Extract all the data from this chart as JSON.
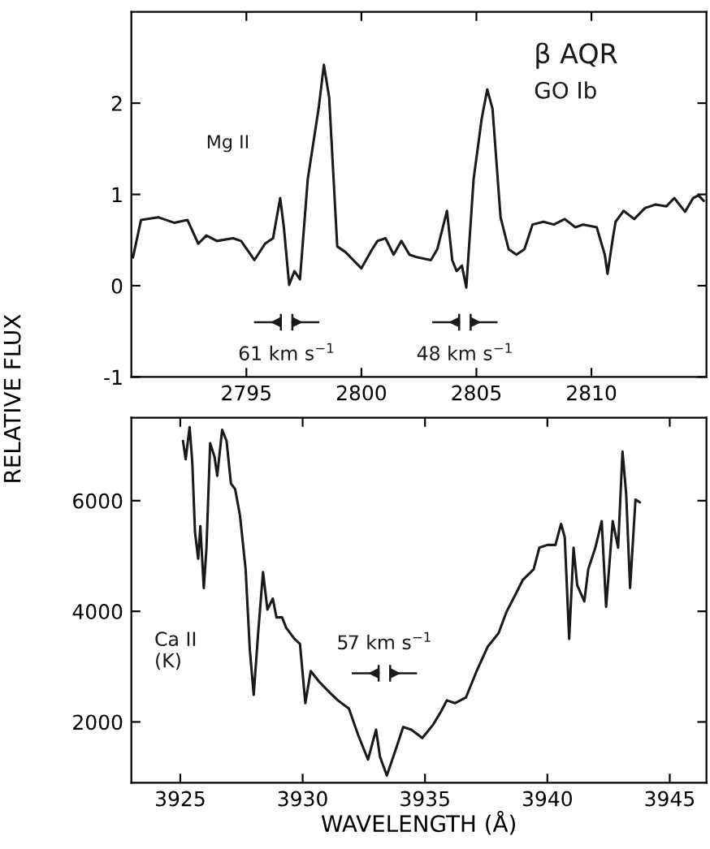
{
  "chart_data": [
    {
      "type": "line",
      "ylabel": "RELATIVE FLUX",
      "xlim": [
        2790,
        2815
      ],
      "ylim": [
        -1,
        3
      ],
      "xticks": [
        2795,
        2800,
        2805,
        2810
      ],
      "yticks": [
        -1,
        0,
        1,
        2
      ],
      "grid": false,
      "legend": false,
      "annotations": [
        "β AQR",
        "GO Ib",
        "Mg II",
        "61 km s$^{−1}$",
        "48 km s$^{−1}$"
      ],
      "series": [
        {
          "color": "#1a1a1a",
          "x": [
            2790.07,
            2790.42,
            2791.16,
            2791.86,
            2792.44,
            2792.91,
            2793.26,
            2793.72,
            2794.42,
            2794.77,
            2795.35,
            2795.81,
            2796.16,
            2796.47,
            2796.63,
            2796.86,
            2797.09,
            2797.33,
            2797.67,
            2798.14,
            2798.37,
            2798.6,
            2798.95,
            2799.3,
            2799.65,
            2800.0,
            2800.47,
            2800.7,
            2801.05,
            2801.4,
            2801.74,
            2802.09,
            2802.44,
            2803.02,
            2803.3,
            2803.72,
            2803.95,
            2804.14,
            2804.37,
            2804.56,
            2804.88,
            2805.23,
            2805.47,
            2805.7,
            2806.05,
            2806.4,
            2806.74,
            2807.09,
            2807.44,
            2807.91,
            2808.37,
            2808.84,
            2809.3,
            2809.65,
            2810.23,
            2810.58,
            2810.7,
            2810.93,
            2811.05,
            2811.4,
            2811.86,
            2812.33,
            2812.79,
            2813.26,
            2813.6,
            2814.07,
            2814.42,
            2814.65,
            2814.88
          ],
          "values": [
            0.31,
            0.72,
            0.75,
            0.69,
            0.72,
            0.46,
            0.55,
            0.49,
            0.52,
            0.49,
            0.28,
            0.46,
            0.52,
            0.96,
            0.64,
            0.01,
            0.16,
            0.07,
            1.17,
            1.94,
            2.42,
            2.06,
            0.43,
            0.37,
            0.28,
            0.19,
            0.4,
            0.49,
            0.52,
            0.34,
            0.49,
            0.34,
            0.31,
            0.28,
            0.4,
            0.82,
            0.28,
            0.16,
            0.22,
            -0.02,
            1.17,
            1.83,
            2.15,
            1.94,
            0.75,
            0.4,
            0.34,
            0.4,
            0.67,
            0.7,
            0.67,
            0.73,
            0.64,
            0.67,
            0.64,
            0.34,
            0.13,
            0.52,
            0.7,
            0.82,
            0.73,
            0.85,
            0.89,
            0.87,
            0.96,
            0.81,
            0.96,
            0.99,
            0.93
          ]
        }
      ]
    },
    {
      "type": "line",
      "xlabel": "WAVELENGTH (Å)",
      "xlim": [
        3923,
        3946.5
      ],
      "ylim": [
        900,
        7500
      ],
      "xticks": [
        3925,
        3930,
        3935,
        3940,
        3945
      ],
      "yticks": [
        2000,
        4000,
        6000
      ],
      "grid": false,
      "legend": false,
      "annotations": [
        "Ca II\n(K)",
        "57 km s$^{−1}$"
      ],
      "series": [
        {
          "color": "#1a1a1a",
          "x": [
            3925.11,
            3925.22,
            3925.38,
            3925.49,
            3925.6,
            3925.73,
            3925.82,
            3925.96,
            3926.07,
            3926.22,
            3926.4,
            3926.51,
            3926.71,
            3926.89,
            3927.07,
            3927.24,
            3927.44,
            3927.67,
            3927.84,
            3928.0,
            3928.18,
            3928.38,
            3928.56,
            3928.78,
            3928.93,
            3929.16,
            3929.33,
            3929.67,
            3929.89,
            3930.11,
            3930.33,
            3930.67,
            3931.11,
            3931.44,
            3931.89,
            3932.27,
            3932.67,
            3933.0,
            3933.16,
            3933.44,
            3933.78,
            3934.11,
            3934.44,
            3934.89,
            3935.33,
            3935.67,
            3935.89,
            3936.22,
            3936.67,
            3937.11,
            3937.56,
            3938.0,
            3938.33,
            3938.67,
            3939.0,
            3939.44,
            3939.67,
            3940.0,
            3940.33,
            3940.56,
            3940.71,
            3940.89,
            3941.07,
            3941.22,
            3941.51,
            3941.67,
            3941.96,
            3942.22,
            3942.4,
            3942.67,
            3942.89,
            3943.07,
            3943.22,
            3943.38,
            3943.6,
            3943.78
          ],
          "values": [
            7080,
            6750,
            7330,
            6700,
            5440,
            4950,
            5540,
            4420,
            5150,
            7040,
            6790,
            6450,
            7280,
            7080,
            6310,
            6210,
            5730,
            4760,
            3310,
            2490,
            3600,
            4710,
            4030,
            4230,
            3890,
            3890,
            3700,
            3500,
            3410,
            2340,
            2920,
            2730,
            2530,
            2390,
            2240,
            1760,
            1320,
            1860,
            1370,
            1030,
            1470,
            1910,
            1860,
            1710,
            1950,
            2200,
            2390,
            2340,
            2440,
            2920,
            3360,
            3600,
            3990,
            4280,
            4570,
            4760,
            5150,
            5200,
            5200,
            5580,
            5340,
            3500,
            5150,
            4470,
            4180,
            4760,
            5150,
            5630,
            4080,
            5630,
            5150,
            6890,
            6120,
            4420,
            6020,
            5970
          ]
        }
      ]
    }
  ]
}
